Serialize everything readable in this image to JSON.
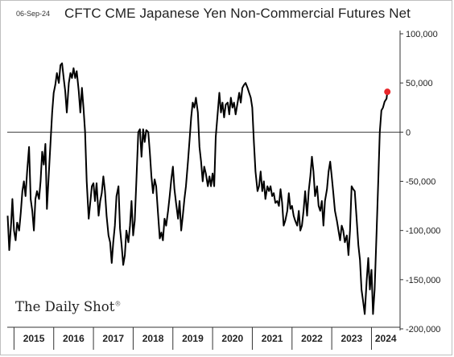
{
  "header": {
    "date": "06-Sep-24",
    "title": "CFTC CME Japanese Yen Non-Commercial Futures Net"
  },
  "branding": {
    "logo_text": "The Daily Shot",
    "logo_mark": "®"
  },
  "chart_data": {
    "type": "line",
    "title": "CFTC CME Japanese Yen Non-Commercial Futures Net",
    "xlabel": "",
    "ylabel": "",
    "ylim": [
      -200000,
      100000
    ],
    "xlim": [
      2014.83,
      2024.72
    ],
    "y_axis_position": "right",
    "y_ticks": [
      100000,
      50000,
      0,
      -50000,
      -100000,
      -150000,
      -200000
    ],
    "y_tick_labels": [
      "100,000",
      "50,000",
      "0",
      "-50,000",
      "-100,000",
      "-150,000",
      "-200,000"
    ],
    "x_tick_labels": [
      "2015",
      "2016",
      "2017",
      "2018",
      "2019",
      "2020",
      "2021",
      "2022",
      "2023",
      "2024"
    ],
    "zero_line": true,
    "grid": false,
    "line_color": "#000000",
    "last_point_color": "#e8262a",
    "series": [
      {
        "values": [
          [
            2014.84,
            -85000
          ],
          [
            2014.88,
            -120000
          ],
          [
            2014.93,
            -92000
          ],
          [
            2014.96,
            -68000
          ],
          [
            2015.0,
            -100000
          ],
          [
            2015.04,
            -110000
          ],
          [
            2015.08,
            -92000
          ],
          [
            2015.13,
            -100000
          ],
          [
            2015.17,
            -82000
          ],
          [
            2015.21,
            -60000
          ],
          [
            2015.25,
            -50000
          ],
          [
            2015.29,
            -65000
          ],
          [
            2015.33,
            -40000
          ],
          [
            2015.38,
            -15000
          ],
          [
            2015.42,
            -68000
          ],
          [
            2015.46,
            -80000
          ],
          [
            2015.5,
            -100000
          ],
          [
            2015.54,
            -68000
          ],
          [
            2015.58,
            -60000
          ],
          [
            2015.63,
            -68000
          ],
          [
            2015.67,
            -50000
          ],
          [
            2015.71,
            -20000
          ],
          [
            2015.75,
            -33000
          ],
          [
            2015.79,
            -12000
          ],
          [
            2015.83,
            -78000
          ],
          [
            2015.88,
            -40000
          ],
          [
            2015.92,
            -10000
          ],
          [
            2015.96,
            20000
          ],
          [
            2016.0,
            40000
          ],
          [
            2016.04,
            48000
          ],
          [
            2016.08,
            60000
          ],
          [
            2016.13,
            50000
          ],
          [
            2016.17,
            68000
          ],
          [
            2016.21,
            70000
          ],
          [
            2016.25,
            55000
          ],
          [
            2016.29,
            42000
          ],
          [
            2016.33,
            20000
          ],
          [
            2016.38,
            50000
          ],
          [
            2016.42,
            60000
          ],
          [
            2016.46,
            55000
          ],
          [
            2016.5,
            65000
          ],
          [
            2016.54,
            55000
          ],
          [
            2016.58,
            62000
          ],
          [
            2016.63,
            42000
          ],
          [
            2016.67,
            20000
          ],
          [
            2016.71,
            45000
          ],
          [
            2016.75,
            25000
          ],
          [
            2016.79,
            0
          ],
          [
            2016.83,
            -50000
          ],
          [
            2016.88,
            -88000
          ],
          [
            2016.92,
            -72000
          ],
          [
            2016.96,
            -55000
          ],
          [
            2017.0,
            -52000
          ],
          [
            2017.04,
            -70000
          ],
          [
            2017.08,
            -52000
          ],
          [
            2017.13,
            -85000
          ],
          [
            2017.17,
            -70000
          ],
          [
            2017.21,
            -62000
          ],
          [
            2017.25,
            -45000
          ],
          [
            2017.29,
            -60000
          ],
          [
            2017.33,
            -85000
          ],
          [
            2017.38,
            -105000
          ],
          [
            2017.42,
            -112000
          ],
          [
            2017.46,
            -133000
          ],
          [
            2017.5,
            -112000
          ],
          [
            2017.54,
            -95000
          ],
          [
            2017.58,
            -65000
          ],
          [
            2017.63,
            -55000
          ],
          [
            2017.67,
            -98000
          ],
          [
            2017.71,
            -115000
          ],
          [
            2017.75,
            -135000
          ],
          [
            2017.79,
            -125000
          ],
          [
            2017.83,
            -100000
          ],
          [
            2017.88,
            -112000
          ],
          [
            2017.92,
            -95000
          ],
          [
            2017.96,
            -70000
          ],
          [
            2018.0,
            -105000
          ],
          [
            2018.04,
            -90000
          ],
          [
            2018.08,
            -50000
          ],
          [
            2018.13,
            0
          ],
          [
            2018.17,
            3000
          ],
          [
            2018.21,
            -25000
          ],
          [
            2018.25,
            3000
          ],
          [
            2018.29,
            -10000
          ],
          [
            2018.33,
            2000
          ],
          [
            2018.38,
            0
          ],
          [
            2018.42,
            -20000
          ],
          [
            2018.46,
            -45000
          ],
          [
            2018.5,
            -62000
          ],
          [
            2018.54,
            -48000
          ],
          [
            2018.58,
            -55000
          ],
          [
            2018.63,
            -85000
          ],
          [
            2018.67,
            -108000
          ],
          [
            2018.71,
            -102000
          ],
          [
            2018.75,
            -110000
          ],
          [
            2018.79,
            -88000
          ],
          [
            2018.83,
            -95000
          ],
          [
            2018.88,
            -80000
          ],
          [
            2018.92,
            -65000
          ],
          [
            2018.96,
            -48000
          ],
          [
            2019.0,
            -35000
          ],
          [
            2019.04,
            -58000
          ],
          [
            2019.08,
            -72000
          ],
          [
            2019.13,
            -88000
          ],
          [
            2019.17,
            -70000
          ],
          [
            2019.21,
            -100000
          ],
          [
            2019.25,
            -85000
          ],
          [
            2019.29,
            -68000
          ],
          [
            2019.33,
            -55000
          ],
          [
            2019.38,
            -30000
          ],
          [
            2019.42,
            -8000
          ],
          [
            2019.46,
            15000
          ],
          [
            2019.5,
            30000
          ],
          [
            2019.54,
            25000
          ],
          [
            2019.58,
            35000
          ],
          [
            2019.63,
            20000
          ],
          [
            2019.67,
            -15000
          ],
          [
            2019.71,
            -30000
          ],
          [
            2019.75,
            -50000
          ],
          [
            2019.79,
            -35000
          ],
          [
            2019.83,
            -42000
          ],
          [
            2019.88,
            -55000
          ],
          [
            2019.92,
            -45000
          ],
          [
            2019.96,
            -55000
          ],
          [
            2020.0,
            -42000
          ],
          [
            2020.04,
            -55000
          ],
          [
            2020.08,
            -5000
          ],
          [
            2020.13,
            20000
          ],
          [
            2020.17,
            40000
          ],
          [
            2020.21,
            20000
          ],
          [
            2020.25,
            30000
          ],
          [
            2020.29,
            15000
          ],
          [
            2020.33,
            28000
          ],
          [
            2020.38,
            30000
          ],
          [
            2020.42,
            18000
          ],
          [
            2020.46,
            35000
          ],
          [
            2020.5,
            25000
          ],
          [
            2020.54,
            30000
          ],
          [
            2020.58,
            18000
          ],
          [
            2020.63,
            30000
          ],
          [
            2020.67,
            40000
          ],
          [
            2020.71,
            30000
          ],
          [
            2020.75,
            45000
          ],
          [
            2020.79,
            48000
          ],
          [
            2020.83,
            50000
          ],
          [
            2020.88,
            45000
          ],
          [
            2020.92,
            40000
          ],
          [
            2020.96,
            35000
          ],
          [
            2021.0,
            25000
          ],
          [
            2021.04,
            -10000
          ],
          [
            2021.08,
            -40000
          ],
          [
            2021.13,
            -60000
          ],
          [
            2021.17,
            -55000
          ],
          [
            2021.21,
            -40000
          ],
          [
            2021.25,
            -60000
          ],
          [
            2021.29,
            -50000
          ],
          [
            2021.33,
            -68000
          ],
          [
            2021.38,
            -55000
          ],
          [
            2021.42,
            -60000
          ],
          [
            2021.46,
            -55000
          ],
          [
            2021.5,
            -65000
          ],
          [
            2021.54,
            -62000
          ],
          [
            2021.58,
            -72000
          ],
          [
            2021.63,
            -70000
          ],
          [
            2021.67,
            -75000
          ],
          [
            2021.71,
            -58000
          ],
          [
            2021.75,
            -72000
          ],
          [
            2021.79,
            -95000
          ],
          [
            2021.83,
            -90000
          ],
          [
            2021.88,
            -80000
          ],
          [
            2021.92,
            -62000
          ],
          [
            2021.96,
            -78000
          ],
          [
            2022.0,
            -75000
          ],
          [
            2022.04,
            -85000
          ],
          [
            2022.08,
            -90000
          ],
          [
            2022.13,
            -95000
          ],
          [
            2022.17,
            -80000
          ],
          [
            2022.21,
            -100000
          ],
          [
            2022.25,
            -95000
          ],
          [
            2022.29,
            -80000
          ],
          [
            2022.33,
            -60000
          ],
          [
            2022.38,
            -85000
          ],
          [
            2022.42,
            -60000
          ],
          [
            2022.46,
            -45000
          ],
          [
            2022.5,
            -25000
          ],
          [
            2022.54,
            -40000
          ],
          [
            2022.58,
            -65000
          ],
          [
            2022.63,
            -55000
          ],
          [
            2022.67,
            -75000
          ],
          [
            2022.71,
            -80000
          ],
          [
            2022.75,
            -70000
          ],
          [
            2022.79,
            -95000
          ],
          [
            2022.83,
            -70000
          ],
          [
            2022.88,
            -58000
          ],
          [
            2022.92,
            -40000
          ],
          [
            2022.96,
            -30000
          ],
          [
            2023.0,
            -45000
          ],
          [
            2023.04,
            -62000
          ],
          [
            2023.08,
            -80000
          ],
          [
            2023.13,
            -90000
          ],
          [
            2023.17,
            -100000
          ],
          [
            2023.21,
            -110000
          ],
          [
            2023.25,
            -95000
          ],
          [
            2023.29,
            -100000
          ],
          [
            2023.33,
            -112000
          ],
          [
            2023.38,
            -105000
          ],
          [
            2023.42,
            -125000
          ],
          [
            2023.46,
            -100000
          ],
          [
            2023.5,
            -55000
          ],
          [
            2023.54,
            -58000
          ],
          [
            2023.58,
            -60000
          ],
          [
            2023.63,
            -90000
          ],
          [
            2023.67,
            -115000
          ],
          [
            2023.71,
            -130000
          ],
          [
            2023.75,
            -160000
          ],
          [
            2023.79,
            -172000
          ],
          [
            2023.83,
            -185000
          ],
          [
            2023.88,
            -150000
          ],
          [
            2023.92,
            -128000
          ],
          [
            2023.96,
            -160000
          ],
          [
            2024.0,
            -140000
          ],
          [
            2024.04,
            -185000
          ],
          [
            2024.08,
            -160000
          ],
          [
            2024.13,
            -100000
          ],
          [
            2024.17,
            -50000
          ],
          [
            2024.21,
            0
          ],
          [
            2024.25,
            22000
          ],
          [
            2024.29,
            25000
          ],
          [
            2024.33,
            31000
          ],
          [
            2024.38,
            34000
          ],
          [
            2024.4,
            41000
          ]
        ]
      }
    ],
    "last_point": [
      2024.4,
      41000
    ]
  }
}
